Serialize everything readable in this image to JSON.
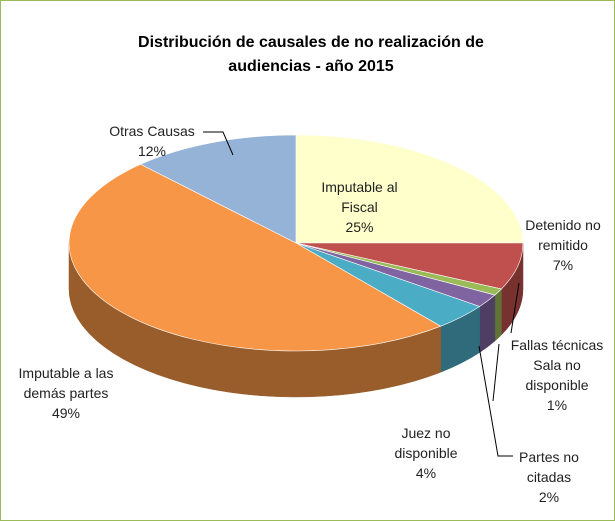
{
  "chart_data": {
    "type": "pie3d",
    "title": "Distribución de causales de no realización de audiencias - año 2015",
    "categories": [
      "Imputable al Fiscal",
      "Detenido no remitido",
      "Fallas técnicas Sala no disponible",
      "Partes no citadas",
      "Juez no disponible",
      "Imputable a las demás partes",
      "Otras Causas"
    ],
    "values": [
      25,
      7,
      1,
      2,
      4,
      49,
      12
    ],
    "value_labels": [
      "25%",
      "7%",
      "1%",
      "2%",
      "4%",
      "49%",
      "12%"
    ],
    "colors": [
      "#ffffcc",
      "#c0504d",
      "#9bbb59",
      "#8064a2",
      "#4bacc6",
      "#f79646",
      "#95b3d7"
    ]
  }
}
